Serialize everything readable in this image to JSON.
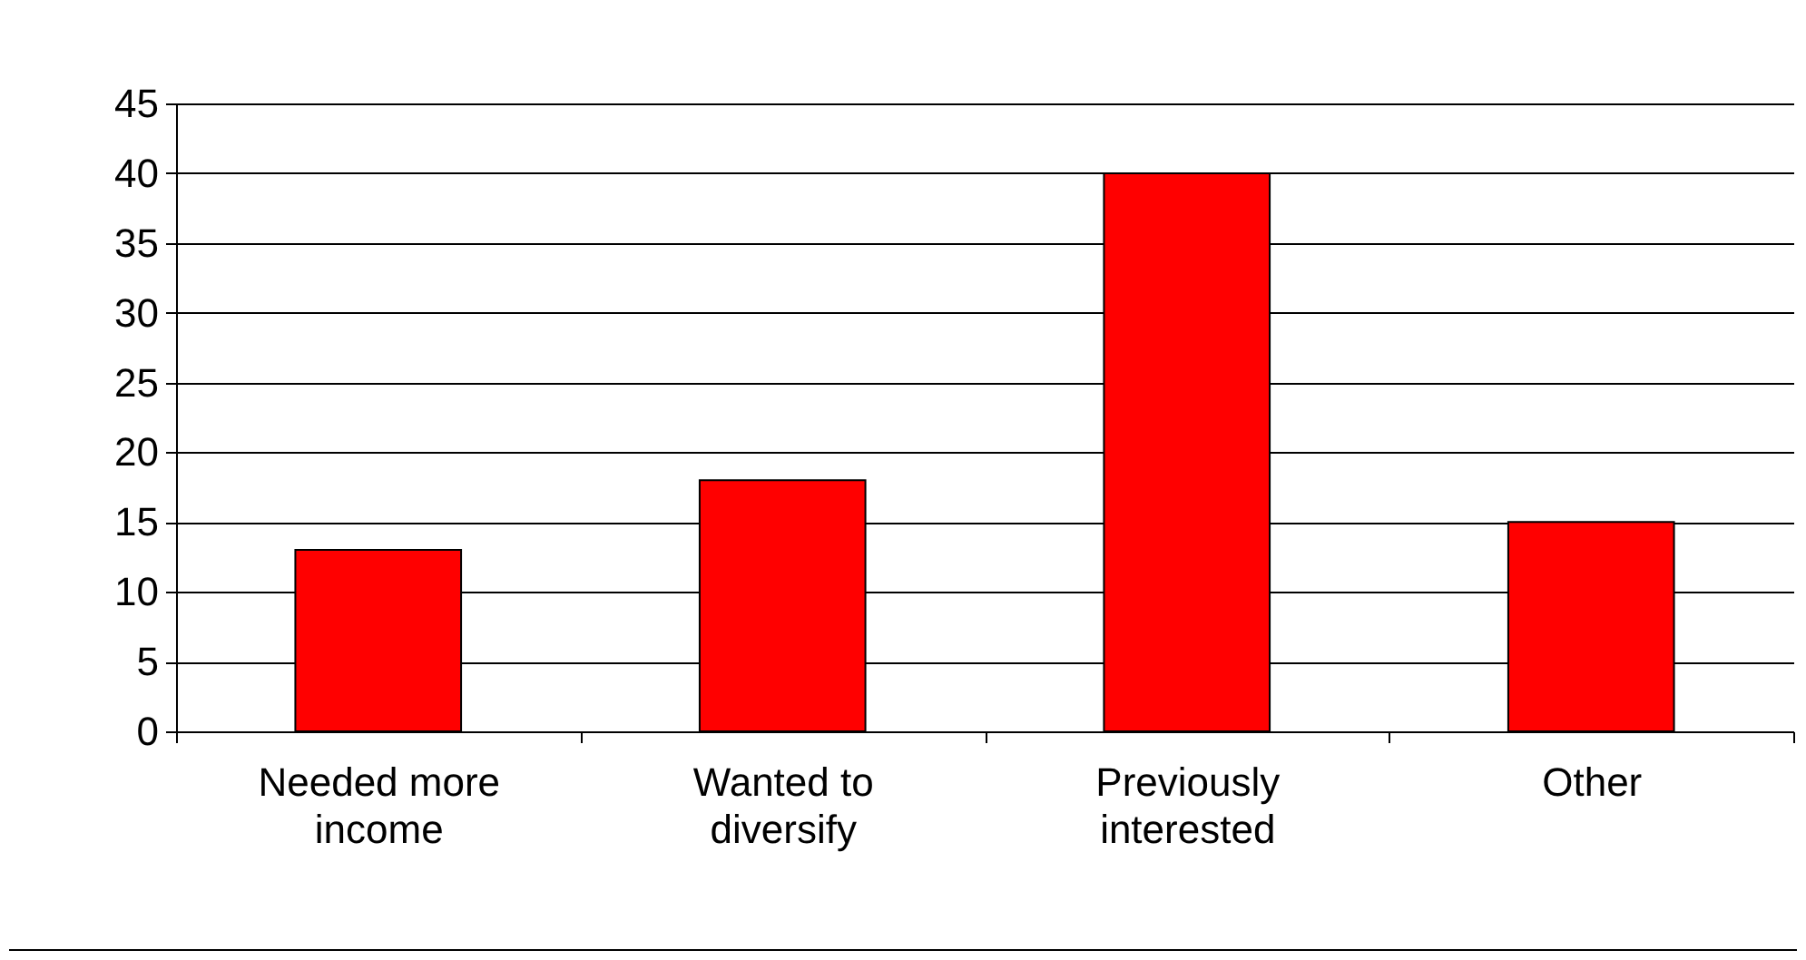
{
  "chart_data": {
    "type": "bar",
    "categories": [
      "Needed more income",
      "Wanted to diversify",
      "Previously interested",
      "Other"
    ],
    "values": [
      13,
      18,
      40,
      15
    ],
    "color": "#ff0000",
    "ylim": [
      0,
      45
    ],
    "yticks": [
      0,
      5,
      10,
      15,
      20,
      25,
      30,
      35,
      40,
      45
    ],
    "grid": "y"
  }
}
